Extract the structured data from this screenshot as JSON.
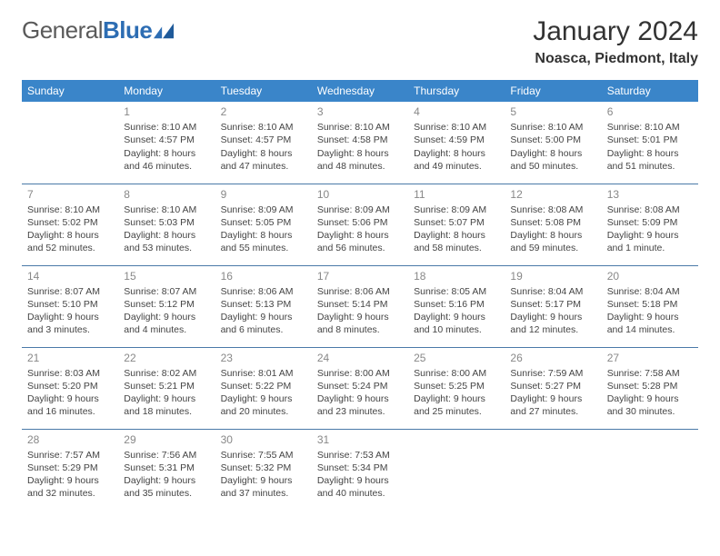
{
  "logo": {
    "word1": "General",
    "word2": "Blue"
  },
  "title": "January 2024",
  "location": "Noasca, Piedmont, Italy",
  "weekdays": [
    "Sunday",
    "Monday",
    "Tuesday",
    "Wednesday",
    "Thursday",
    "Friday",
    "Saturday"
  ],
  "colors": {
    "header_bg": "#3a85c9",
    "header_text": "#ffffff",
    "row_border": "#4a79a8",
    "daynum": "#888888",
    "body_text": "#444444",
    "logo_gray": "#5a5a5a",
    "logo_blue": "#2d6db3"
  },
  "weeks": [
    [
      {
        "day": "",
        "lines": []
      },
      {
        "day": "1",
        "lines": [
          "Sunrise: 8:10 AM",
          "Sunset: 4:57 PM",
          "Daylight: 8 hours",
          "and 46 minutes."
        ]
      },
      {
        "day": "2",
        "lines": [
          "Sunrise: 8:10 AM",
          "Sunset: 4:57 PM",
          "Daylight: 8 hours",
          "and 47 minutes."
        ]
      },
      {
        "day": "3",
        "lines": [
          "Sunrise: 8:10 AM",
          "Sunset: 4:58 PM",
          "Daylight: 8 hours",
          "and 48 minutes."
        ]
      },
      {
        "day": "4",
        "lines": [
          "Sunrise: 8:10 AM",
          "Sunset: 4:59 PM",
          "Daylight: 8 hours",
          "and 49 minutes."
        ]
      },
      {
        "day": "5",
        "lines": [
          "Sunrise: 8:10 AM",
          "Sunset: 5:00 PM",
          "Daylight: 8 hours",
          "and 50 minutes."
        ]
      },
      {
        "day": "6",
        "lines": [
          "Sunrise: 8:10 AM",
          "Sunset: 5:01 PM",
          "Daylight: 8 hours",
          "and 51 minutes."
        ]
      }
    ],
    [
      {
        "day": "7",
        "lines": [
          "Sunrise: 8:10 AM",
          "Sunset: 5:02 PM",
          "Daylight: 8 hours",
          "and 52 minutes."
        ]
      },
      {
        "day": "8",
        "lines": [
          "Sunrise: 8:10 AM",
          "Sunset: 5:03 PM",
          "Daylight: 8 hours",
          "and 53 minutes."
        ]
      },
      {
        "day": "9",
        "lines": [
          "Sunrise: 8:09 AM",
          "Sunset: 5:05 PM",
          "Daylight: 8 hours",
          "and 55 minutes."
        ]
      },
      {
        "day": "10",
        "lines": [
          "Sunrise: 8:09 AM",
          "Sunset: 5:06 PM",
          "Daylight: 8 hours",
          "and 56 minutes."
        ]
      },
      {
        "day": "11",
        "lines": [
          "Sunrise: 8:09 AM",
          "Sunset: 5:07 PM",
          "Daylight: 8 hours",
          "and 58 minutes."
        ]
      },
      {
        "day": "12",
        "lines": [
          "Sunrise: 8:08 AM",
          "Sunset: 5:08 PM",
          "Daylight: 8 hours",
          "and 59 minutes."
        ]
      },
      {
        "day": "13",
        "lines": [
          "Sunrise: 8:08 AM",
          "Sunset: 5:09 PM",
          "Daylight: 9 hours",
          "and 1 minute."
        ]
      }
    ],
    [
      {
        "day": "14",
        "lines": [
          "Sunrise: 8:07 AM",
          "Sunset: 5:10 PM",
          "Daylight: 9 hours",
          "and 3 minutes."
        ]
      },
      {
        "day": "15",
        "lines": [
          "Sunrise: 8:07 AM",
          "Sunset: 5:12 PM",
          "Daylight: 9 hours",
          "and 4 minutes."
        ]
      },
      {
        "day": "16",
        "lines": [
          "Sunrise: 8:06 AM",
          "Sunset: 5:13 PM",
          "Daylight: 9 hours",
          "and 6 minutes."
        ]
      },
      {
        "day": "17",
        "lines": [
          "Sunrise: 8:06 AM",
          "Sunset: 5:14 PM",
          "Daylight: 9 hours",
          "and 8 minutes."
        ]
      },
      {
        "day": "18",
        "lines": [
          "Sunrise: 8:05 AM",
          "Sunset: 5:16 PM",
          "Daylight: 9 hours",
          "and 10 minutes."
        ]
      },
      {
        "day": "19",
        "lines": [
          "Sunrise: 8:04 AM",
          "Sunset: 5:17 PM",
          "Daylight: 9 hours",
          "and 12 minutes."
        ]
      },
      {
        "day": "20",
        "lines": [
          "Sunrise: 8:04 AM",
          "Sunset: 5:18 PM",
          "Daylight: 9 hours",
          "and 14 minutes."
        ]
      }
    ],
    [
      {
        "day": "21",
        "lines": [
          "Sunrise: 8:03 AM",
          "Sunset: 5:20 PM",
          "Daylight: 9 hours",
          "and 16 minutes."
        ]
      },
      {
        "day": "22",
        "lines": [
          "Sunrise: 8:02 AM",
          "Sunset: 5:21 PM",
          "Daylight: 9 hours",
          "and 18 minutes."
        ]
      },
      {
        "day": "23",
        "lines": [
          "Sunrise: 8:01 AM",
          "Sunset: 5:22 PM",
          "Daylight: 9 hours",
          "and 20 minutes."
        ]
      },
      {
        "day": "24",
        "lines": [
          "Sunrise: 8:00 AM",
          "Sunset: 5:24 PM",
          "Daylight: 9 hours",
          "and 23 minutes."
        ]
      },
      {
        "day": "25",
        "lines": [
          "Sunrise: 8:00 AM",
          "Sunset: 5:25 PM",
          "Daylight: 9 hours",
          "and 25 minutes."
        ]
      },
      {
        "day": "26",
        "lines": [
          "Sunrise: 7:59 AM",
          "Sunset: 5:27 PM",
          "Daylight: 9 hours",
          "and 27 minutes."
        ]
      },
      {
        "day": "27",
        "lines": [
          "Sunrise: 7:58 AM",
          "Sunset: 5:28 PM",
          "Daylight: 9 hours",
          "and 30 minutes."
        ]
      }
    ],
    [
      {
        "day": "28",
        "lines": [
          "Sunrise: 7:57 AM",
          "Sunset: 5:29 PM",
          "Daylight: 9 hours",
          "and 32 minutes."
        ]
      },
      {
        "day": "29",
        "lines": [
          "Sunrise: 7:56 AM",
          "Sunset: 5:31 PM",
          "Daylight: 9 hours",
          "and 35 minutes."
        ]
      },
      {
        "day": "30",
        "lines": [
          "Sunrise: 7:55 AM",
          "Sunset: 5:32 PM",
          "Daylight: 9 hours",
          "and 37 minutes."
        ]
      },
      {
        "day": "31",
        "lines": [
          "Sunrise: 7:53 AM",
          "Sunset: 5:34 PM",
          "Daylight: 9 hours",
          "and 40 minutes."
        ]
      },
      {
        "day": "",
        "lines": []
      },
      {
        "day": "",
        "lines": []
      },
      {
        "day": "",
        "lines": []
      }
    ]
  ]
}
